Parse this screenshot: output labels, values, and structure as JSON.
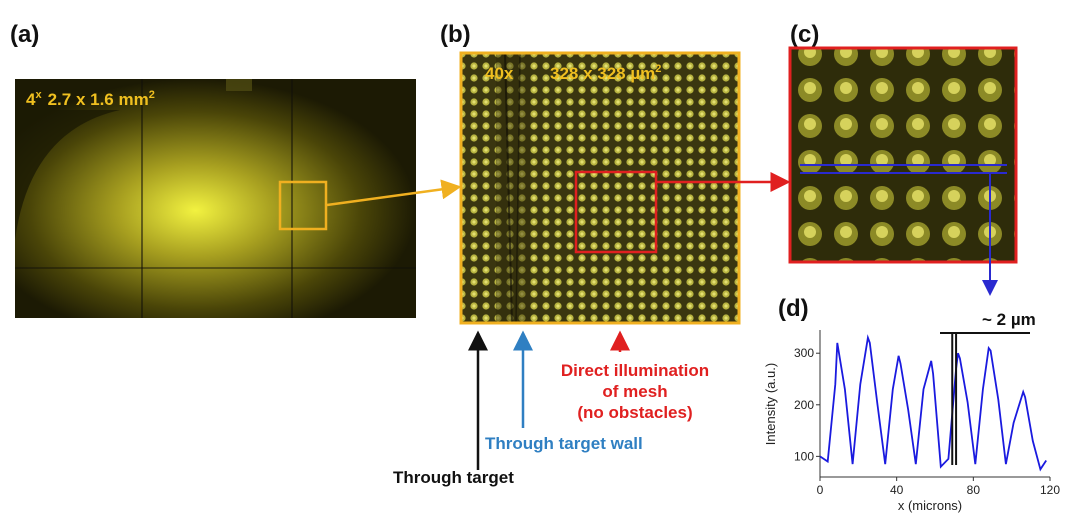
{
  "panels": {
    "a": {
      "label": "(a)",
      "magnification": "4",
      "magnification_suffix": "x",
      "field": "2.7 x 1.6 mm",
      "field_unit_power": "2"
    },
    "b": {
      "label": "(b)",
      "magnification": "40x",
      "field": "328 x 328 µm",
      "field_unit_power": "2"
    },
    "c": {
      "label": "(c)"
    },
    "d": {
      "label": "(d)",
      "spacing_annotation": "~ 2 µm"
    }
  },
  "annotations": {
    "direct_illumination": [
      "Direct illumination",
      "of mesh",
      "(no obstacles)"
    ],
    "through_target_wall": "Through target wall",
    "through_target": "Through target"
  },
  "colors": {
    "image_yellow": "#f0c020",
    "frame_yellow": "#f0b020",
    "frame_red": "#e02020",
    "profile_blue": "#1a1adf",
    "arrow_blue": "#2f7fc2",
    "text_red": "#e02020",
    "text_blue": "#2f7fc2"
  },
  "chart_data": {
    "type": "line",
    "title": "",
    "xlabel": "x (microns)",
    "ylabel": "Intensity (a.u.)",
    "xlim": [
      0,
      120
    ],
    "ylim": [
      60,
      345
    ],
    "xticks": [
      0,
      40,
      80,
      120
    ],
    "yticks": [
      100,
      200,
      300
    ],
    "series": [
      {
        "x": [
          0,
          4,
          8,
          9,
          13,
          17,
          21,
          25,
          26,
          30,
          34,
          38,
          41,
          42,
          46,
          50,
          54,
          58,
          59,
          63,
          67,
          71,
          72,
          73,
          77,
          81,
          85,
          88,
          89,
          93,
          97,
          101,
          106,
          107,
          111,
          115,
          118
        ],
        "y": [
          100,
          90,
          240,
          320,
          230,
          85,
          240,
          330,
          320,
          200,
          85,
          230,
          295,
          280,
          190,
          85,
          230,
          285,
          260,
          80,
          95,
          270,
          300,
          290,
          205,
          85,
          230,
          310,
          305,
          210,
          85,
          165,
          225,
          215,
          130,
          75,
          92
        ]
      }
    ],
    "spacing_marker_x": [
      69,
      71
    ]
  }
}
